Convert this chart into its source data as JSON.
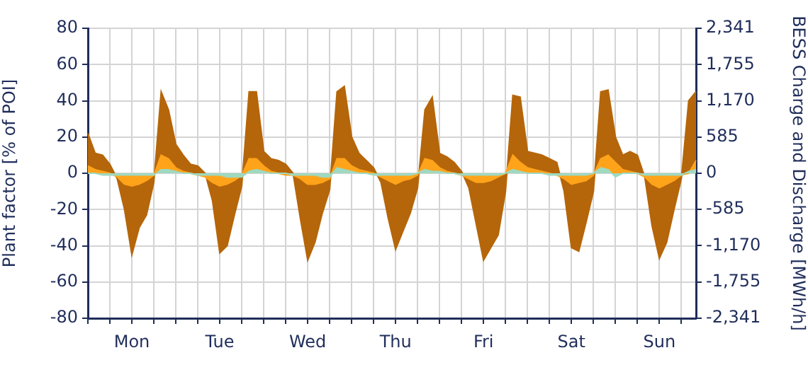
{
  "chart_data": {
    "type": "area",
    "ylabel": "Plant factor [% of POI]",
    "y2label": "BESS Charge and Discharge [MWh/h]",
    "categories": [
      null,
      null,
      null,
      null,
      null,
      null,
      "Mon",
      null,
      null,
      null,
      null,
      null,
      null,
      null,
      null,
      null,
      null,
      null,
      "Tue",
      null,
      null,
      null,
      null,
      null,
      null,
      null,
      null,
      null,
      null,
      null,
      "Wed",
      null,
      null,
      null,
      null,
      null,
      null,
      null,
      null,
      null,
      null,
      null,
      "Thu",
      null,
      null,
      null,
      null,
      null,
      null,
      null,
      null,
      null,
      null,
      null,
      "Fri",
      null,
      null,
      null,
      null,
      null,
      null,
      null,
      null,
      null,
      null,
      null,
      "Sat",
      null,
      null,
      null,
      null,
      null,
      null,
      null,
      null,
      null,
      null,
      null,
      "Sun",
      null,
      null,
      null,
      null,
      null
    ],
    "ylim": [
      -80,
      80
    ],
    "yticks": [
      -80,
      -60,
      -40,
      -20,
      0,
      20,
      40,
      60,
      80
    ],
    "y2lim": [
      -2341,
      2341
    ],
    "y2ticks": [
      {
        "value": -2341,
        "label": "-2,341"
      },
      {
        "value": -1755,
        "label": "-1,755"
      },
      {
        "value": -1170,
        "label": "-1,170"
      },
      -585,
      0,
      585,
      {
        "value": 1170,
        "label": "1,170"
      },
      {
        "value": 1755,
        "label": "1,755"
      },
      {
        "value": 2341,
        "label": "2,341"
      }
    ],
    "grid": true,
    "legend": false,
    "series": [
      {
        "color": "#b5660a",
        "values": [
          22,
          11,
          10,
          5,
          -3,
          -20,
          -45,
          -30,
          -23,
          -5,
          45,
          35,
          16,
          10,
          5,
          4,
          0,
          -15,
          -44,
          -40,
          -23,
          -7,
          45,
          45,
          12,
          8,
          7,
          5,
          0,
          -25,
          -48,
          -38,
          -22,
          -9,
          45,
          48,
          20,
          11,
          7,
          3,
          -5,
          -25,
          -42,
          -32,
          -22,
          -8,
          35,
          42,
          11,
          9,
          6,
          1,
          -8,
          -28,
          -48,
          -41,
          -34,
          -10,
          43,
          42,
          12,
          11,
          10,
          8,
          6,
          -10,
          -41,
          -43,
          -27,
          -10,
          45,
          46,
          20,
          10,
          12,
          10,
          -2,
          -29,
          -47,
          -38,
          -20,
          -3,
          40,
          45
        ]
      },
      {
        "color": "#ffa31a",
        "values": [
          4,
          2,
          1,
          0,
          -2,
          -6,
          -7,
          -6,
          -4,
          -1,
          10,
          8,
          3,
          1,
          0,
          -1,
          -2,
          -5,
          -7,
          -6,
          -4,
          -1,
          8,
          8,
          4,
          1,
          0,
          -1,
          -1,
          -3,
          -6,
          -6,
          -5,
          -3,
          8,
          8,
          4,
          2,
          1,
          0,
          -2,
          -4,
          -6,
          -4,
          -3,
          -1,
          8,
          7,
          3,
          1,
          0,
          -1,
          -3,
          -5,
          -5,
          -4,
          -2,
          0,
          10,
          6,
          3,
          2,
          1,
          0,
          -1,
          -3,
          -6,
          -5,
          -4,
          -1,
          8,
          10,
          6,
          2,
          1,
          0,
          -2,
          -6,
          -8,
          -6,
          -4,
          -1,
          0,
          7
        ]
      },
      {
        "color": "#9fd9c0",
        "values": [
          0,
          0,
          -1,
          -1,
          -1,
          -1,
          -1,
          -1,
          -1,
          -1,
          2,
          2,
          1,
          0,
          0,
          -1,
          -1,
          -1,
          -1,
          -2,
          -2,
          -2,
          1,
          2,
          1,
          0,
          0,
          0,
          -1,
          -1,
          -1,
          -1,
          -2,
          -2,
          3,
          2,
          1,
          0,
          0,
          -1,
          -1,
          -1,
          -1,
          -1,
          -1,
          0,
          2,
          1,
          1,
          0,
          0,
          -1,
          -1,
          -1,
          -1,
          -1,
          -1,
          0,
          2,
          1,
          0,
          0,
          0,
          -1,
          -1,
          -1,
          -1,
          -1,
          -1,
          0,
          3,
          2,
          -2,
          0,
          0,
          0,
          -1,
          -1,
          -1,
          -1,
          -1,
          -1,
          1,
          2
        ]
      }
    ]
  }
}
